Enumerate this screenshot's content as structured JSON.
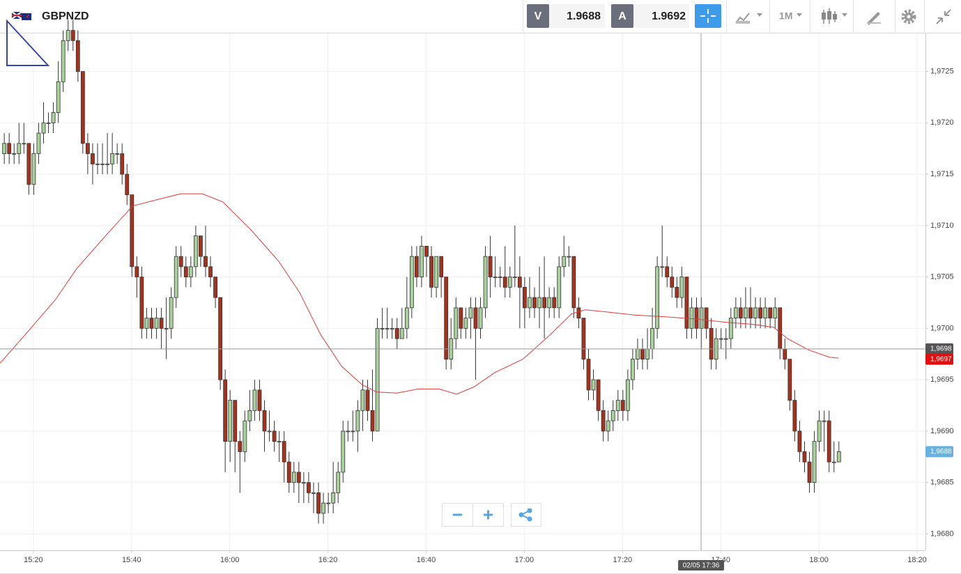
{
  "toolbar": {
    "symbol": "GBPNZD",
    "bid_label": "V",
    "bid": "1.9688",
    "ask_label": "A",
    "ask": "1.9692",
    "timeframe": "1M"
  },
  "chart_data": {
    "type": "candlestick",
    "up_color": "#a9d19c",
    "down_color": "#a5321d",
    "grid": true,
    "xlim": [
      913.2,
      1101.7
    ],
    "xticks": [
      {
        "value": 920,
        "label": "15:20"
      },
      {
        "value": 940,
        "label": "15:40"
      },
      {
        "value": 960,
        "label": "16:00"
      },
      {
        "value": 980,
        "label": "16:20"
      },
      {
        "value": 1000,
        "label": "16:40"
      },
      {
        "value": 1020,
        "label": "17:00"
      },
      {
        "value": 1040,
        "label": "17:20"
      },
      {
        "value": 1060,
        "label": "17:40"
      },
      {
        "value": 1080,
        "label": "18:00"
      },
      {
        "value": 1100,
        "label": "18:20"
      }
    ],
    "ylim": [
      1.96784,
      1.97287
    ],
    "yticks": [
      {
        "value": 1.968,
        "label": "1,9680"
      },
      {
        "value": 1.9685,
        "label": "1,9685"
      },
      {
        "value": 1.969,
        "label": "1,9690"
      },
      {
        "value": 1.9695,
        "label": "1,9695"
      },
      {
        "value": 1.97,
        "label": "1,9700"
      },
      {
        "value": 1.9705,
        "label": "1,9705"
      },
      {
        "value": 1.971,
        "label": "1,9710"
      },
      {
        "value": 1.9715,
        "label": "1,9715"
      },
      {
        "value": 1.972,
        "label": "1,9720"
      },
      {
        "value": 1.9725,
        "label": "1,9725"
      }
    ],
    "x": [
      914,
      915,
      916,
      917,
      918,
      919,
      920,
      921,
      922,
      923,
      924,
      925,
      926,
      927,
      928,
      929,
      930,
      931,
      932,
      933,
      934,
      935,
      936,
      937,
      938,
      939,
      940,
      941,
      942,
      943,
      944,
      945,
      946,
      947,
      948,
      949,
      950,
      951,
      952,
      953,
      954,
      955,
      956,
      957,
      958,
      959,
      960,
      961,
      962,
      963,
      964,
      965,
      966,
      967,
      968,
      969,
      970,
      971,
      972,
      973,
      974,
      975,
      976,
      977,
      978,
      979,
      980,
      981,
      982,
      983,
      984,
      985,
      986,
      987,
      988,
      989,
      990,
      991,
      992,
      993,
      994,
      995,
      996,
      997,
      998,
      999,
      1000,
      1001,
      1002,
      1003,
      1004,
      1005,
      1006,
      1007,
      1008,
      1009,
      1010,
      1011,
      1012,
      1013,
      1014,
      1015,
      1016,
      1017,
      1018,
      1019,
      1020,
      1021,
      1022,
      1023,
      1024,
      1025,
      1026,
      1027,
      1028,
      1029,
      1030,
      1031,
      1032,
      1033,
      1034,
      1035,
      1036,
      1037,
      1038,
      1039,
      1040,
      1041,
      1042,
      1043,
      1044,
      1045,
      1046,
      1047,
      1048,
      1049,
      1050,
      1051,
      1052,
      1053,
      1054,
      1055,
      1056,
      1057,
      1058,
      1059,
      1060,
      1061,
      1062,
      1063,
      1064,
      1065,
      1066,
      1067,
      1068,
      1069,
      1070,
      1071,
      1072,
      1073,
      1074,
      1075,
      1076,
      1077,
      1078,
      1079,
      1080,
      1081,
      1082,
      1083,
      1084
    ],
    "open": [
      1.9717,
      1.9718,
      1.9717,
      1.9717,
      1.9718,
      1.9718,
      1.9714,
      1.9717,
      1.9719,
      1.972,
      1.972,
      1.9721,
      1.9724,
      1.9728,
      1.9729,
      1.9728,
      1.9725,
      1.9718,
      1.9717,
      1.9716,
      1.9716,
      1.9716,
      1.9716,
      1.9717,
      1.9717,
      1.9715,
      1.9713,
      1.9706,
      1.9705,
      1.97,
      1.9701,
      1.97,
      1.9701,
      1.97,
      1.97,
      1.9703,
      1.9707,
      1.9706,
      1.9705,
      1.9706,
      1.9709,
      1.9707,
      1.9706,
      1.9705,
      1.9703,
      1.9695,
      1.9689,
      1.9693,
      1.9689,
      1.9688,
      1.9691,
      1.9692,
      1.9694,
      1.9692,
      1.969,
      1.969,
      1.9689,
      1.9689,
      1.9687,
      1.9685,
      1.9686,
      1.9685,
      1.9685,
      1.9684,
      1.9684,
      1.9682,
      1.9683,
      1.9683,
      1.9684,
      1.9686,
      1.969,
      1.969,
      1.969,
      1.9692,
      1.9694,
      1.9692,
      1.969,
      1.97,
      1.97,
      1.97,
      1.97,
      1.9699,
      1.97,
      1.9702,
      1.9707,
      1.9705,
      1.9708,
      1.9707,
      1.9704,
      1.9707,
      1.9705,
      1.9697,
      1.9699,
      1.9702,
      1.97,
      1.9701,
      1.9702,
      1.97,
      1.9702,
      1.9707,
      1.9705,
      1.9705,
      1.9705,
      1.9704,
      1.9705,
      1.9705,
      1.9704,
      1.9702,
      1.9703,
      1.9702,
      1.9703,
      1.9702,
      1.9703,
      1.9702,
      1.9706,
      1.9707,
      1.9707,
      1.9702,
      1.9701,
      1.9697,
      1.9694,
      1.9695,
      1.9692,
      1.969,
      1.9691,
      1.9692,
      1.9693,
      1.9692,
      1.9695,
      1.9697,
      1.9698,
      1.9697,
      1.9698,
      1.97,
      1.9706,
      1.9706,
      1.9705,
      1.9704,
      1.9703,
      1.9705,
      1.97,
      1.9702,
      1.97,
      1.9702,
      1.97,
      1.9697,
      1.9699,
      1.9699,
      1.9699,
      1.9701,
      1.9702,
      1.9701,
      1.9702,
      1.9701,
      1.9702,
      1.9701,
      1.9702,
      1.9701,
      1.9702,
      1.9698,
      1.9697,
      1.9693,
      1.969,
      1.9688,
      1.9687,
      1.9685,
      1.9689,
      1.9691,
      1.9691,
      1.9687,
      1.9687
    ],
    "high": [
      1.9719,
      1.9719,
      1.9718,
      1.972,
      1.972,
      1.9718,
      1.9718,
      1.972,
      1.9722,
      1.9721,
      1.9722,
      1.9726,
      1.9729,
      1.973,
      1.973,
      1.9729,
      1.9725,
      1.9719,
      1.9718,
      1.9718,
      1.9718,
      1.9719,
      1.9719,
      1.9718,
      1.9718,
      1.9716,
      1.9713,
      1.9707,
      1.9706,
      1.9702,
      1.9702,
      1.9702,
      1.9702,
      1.9703,
      1.9704,
      1.9708,
      1.9708,
      1.9707,
      1.9707,
      1.971,
      1.9709,
      1.971,
      1.9707,
      1.9705,
      1.9703,
      1.9696,
      1.9694,
      1.9693,
      1.969,
      1.9692,
      1.9694,
      1.9695,
      1.9695,
      1.9693,
      1.9692,
      1.9691,
      1.969,
      1.969,
      1.9688,
      1.9687,
      1.9687,
      1.9686,
      1.9686,
      1.9685,
      1.9685,
      1.9684,
      1.9684,
      1.9687,
      1.9687,
      1.9691,
      1.9691,
      1.9692,
      1.9693,
      1.9695,
      1.9695,
      1.9696,
      1.9701,
      1.9702,
      1.9702,
      1.9701,
      1.9701,
      1.9702,
      1.9705,
      1.9708,
      1.9708,
      1.9709,
      1.9708,
      1.9708,
      1.9707,
      1.9707,
      1.9705,
      1.9701,
      1.9703,
      1.9702,
      1.9702,
      1.9703,
      1.9703,
      1.9703,
      1.9708,
      1.9709,
      1.9707,
      1.9706,
      1.9708,
      1.9706,
      1.971,
      1.9707,
      1.9705,
      1.9705,
      1.9704,
      1.9706,
      1.9707,
      1.9704,
      1.9704,
      1.9707,
      1.9709,
      1.9708,
      1.9707,
      1.9703,
      1.9701,
      1.9698,
      1.9696,
      1.9695,
      1.9693,
      1.9692,
      1.9693,
      1.9694,
      1.9694,
      1.9696,
      1.9698,
      1.9699,
      1.9699,
      1.97,
      1.9702,
      1.9707,
      1.971,
      1.9707,
      1.9706,
      1.9705,
      1.9706,
      1.9705,
      1.9703,
      1.9703,
      1.9703,
      1.9702,
      1.9701,
      1.97,
      1.97,
      1.97,
      1.9702,
      1.9703,
      1.9703,
      1.9704,
      1.9704,
      1.9703,
      1.9703,
      1.9703,
      1.9702,
      1.9703,
      1.9702,
      1.9699,
      1.9697,
      1.9694,
      1.9691,
      1.9689,
      1.9688,
      1.969,
      1.9692,
      1.9692,
      1.9692,
      1.9689,
      1.9689
    ],
    "low": [
      1.9716,
      1.9716,
      1.9716,
      1.9716,
      1.9717,
      1.9713,
      1.9713,
      1.9716,
      1.9718,
      1.9719,
      1.9719,
      1.972,
      1.9723,
      1.9727,
      1.9727,
      1.9724,
      1.9717,
      1.9715,
      1.9714,
      1.9715,
      1.9715,
      1.9715,
      1.9715,
      1.9716,
      1.9714,
      1.9712,
      1.9705,
      1.9703,
      1.9699,
      1.9699,
      1.9699,
      1.9699,
      1.9698,
      1.9697,
      1.9699,
      1.9702,
      1.9705,
      1.9704,
      1.9704,
      1.9705,
      1.9706,
      1.9705,
      1.9704,
      1.9702,
      1.9694,
      1.9686,
      1.9687,
      1.9686,
      1.9684,
      1.9687,
      1.969,
      1.9691,
      1.9691,
      1.9688,
      1.9689,
      1.9688,
      1.9687,
      1.9685,
      1.9684,
      1.9684,
      1.9683,
      1.9683,
      1.9683,
      1.9682,
      1.9681,
      1.9681,
      1.9682,
      1.9682,
      1.9683,
      1.9685,
      1.9689,
      1.9689,
      1.9688,
      1.969,
      1.9691,
      1.9689,
      1.969,
      1.9699,
      1.9699,
      1.9699,
      1.9698,
      1.9699,
      1.9699,
      1.9701,
      1.9704,
      1.9704,
      1.9705,
      1.9703,
      1.9703,
      1.9703,
      1.9696,
      1.9696,
      1.9698,
      1.9699,
      1.9699,
      1.9699,
      1.9695,
      1.9699,
      1.9701,
      1.9703,
      1.9704,
      1.9704,
      1.9703,
      1.9703,
      1.9704,
      1.97,
      1.97,
      1.9701,
      1.9701,
      1.97,
      1.9699,
      1.9701,
      1.9701,
      1.9701,
      1.9705,
      1.9706,
      1.9701,
      1.97,
      1.9696,
      1.9693,
      1.9693,
      1.9691,
      1.9689,
      1.9689,
      1.969,
      1.9691,
      1.9691,
      1.9691,
      1.9694,
      1.9696,
      1.9696,
      1.9696,
      1.9697,
      1.9699,
      1.9705,
      1.9704,
      1.9703,
      1.9702,
      1.9702,
      1.9699,
      1.9699,
      1.9699,
      1.9698,
      1.9699,
      1.9696,
      1.9696,
      1.9698,
      1.9697,
      1.9698,
      1.97,
      1.97,
      1.97,
      1.97,
      1.97,
      1.97,
      1.97,
      1.97,
      1.97,
      1.9697,
      1.9696,
      1.9692,
      1.9689,
      1.9687,
      1.9686,
      1.9684,
      1.9684,
      1.9688,
      1.9688,
      1.9686,
      1.9686,
      1.9687
    ],
    "close": [
      1.9718,
      1.9717,
      1.9717,
      1.9718,
      1.9718,
      1.9714,
      1.9717,
      1.9719,
      1.972,
      1.972,
      1.9721,
      1.9724,
      1.9728,
      1.9729,
      1.9728,
      1.9725,
      1.9718,
      1.9717,
      1.9716,
      1.9716,
      1.9716,
      1.9716,
      1.9717,
      1.9717,
      1.9715,
      1.9713,
      1.9706,
      1.9705,
      1.97,
      1.9701,
      1.97,
      1.9701,
      1.97,
      1.97,
      1.9703,
      1.9707,
      1.9706,
      1.9705,
      1.9706,
      1.9709,
      1.9707,
      1.9706,
      1.9705,
      1.9703,
      1.9695,
      1.9689,
      1.9693,
      1.9689,
      1.9688,
      1.9691,
      1.9692,
      1.9694,
      1.9692,
      1.969,
      1.969,
      1.9689,
      1.9689,
      1.9687,
      1.9685,
      1.9686,
      1.9685,
      1.9685,
      1.9684,
      1.9684,
      1.9682,
      1.9683,
      1.9683,
      1.9684,
      1.9686,
      1.969,
      1.969,
      1.969,
      1.9692,
      1.9694,
      1.9692,
      1.969,
      1.97,
      1.97,
      1.97,
      1.97,
      1.9699,
      1.97,
      1.9702,
      1.9707,
      1.9705,
      1.9708,
      1.9707,
      1.9704,
      1.9707,
      1.9705,
      1.9697,
      1.9699,
      1.9702,
      1.97,
      1.9701,
      1.9702,
      1.97,
      1.9702,
      1.9707,
      1.9705,
      1.9705,
      1.9705,
      1.9704,
      1.9705,
      1.9705,
      1.9704,
      1.9702,
      1.9703,
      1.9702,
      1.9703,
      1.9702,
      1.9703,
      1.9702,
      1.9706,
      1.9707,
      1.9707,
      1.9702,
      1.9701,
      1.9697,
      1.9694,
      1.9695,
      1.9692,
      1.969,
      1.9691,
      1.9692,
      1.9693,
      1.9692,
      1.9695,
      1.9697,
      1.9698,
      1.9697,
      1.9698,
      1.97,
      1.9706,
      1.9706,
      1.9705,
      1.9704,
      1.9703,
      1.9705,
      1.97,
      1.9702,
      1.97,
      1.9702,
      1.97,
      1.9697,
      1.9699,
      1.9699,
      1.9699,
      1.9701,
      1.9702,
      1.9701,
      1.9702,
      1.9701,
      1.9702,
      1.9701,
      1.9702,
      1.9701,
      1.9702,
      1.9698,
      1.9697,
      1.9693,
      1.969,
      1.9688,
      1.9687,
      1.9685,
      1.9689,
      1.9691,
      1.9691,
      1.9687,
      1.9687,
      1.9688
    ],
    "overlay": {
      "color": "#e03a3a",
      "x": [
        913.2,
        918.9,
        924.5,
        928.8,
        934.5,
        940.2,
        945.8,
        950.1,
        954.4,
        958.6,
        964.3,
        970.0,
        974.2,
        978.5,
        982.8,
        987.0,
        989.9,
        994.1,
        998.4,
        1002.6,
        1006.2,
        1009.7,
        1014.0,
        1019.7,
        1025.3,
        1029.6,
        1032.4,
        1036.7,
        1042.4,
        1049.5,
        1055.2,
        1060.8,
        1066.5,
        1070.8,
        1073.6,
        1077.9,
        1082.1,
        1084.0
      ],
      "values": [
        1.96966,
        1.96997,
        1.97028,
        1.97058,
        1.97089,
        1.97119,
        1.97126,
        1.97131,
        1.97131,
        1.97123,
        1.97096,
        1.97065,
        1.97035,
        1.96994,
        1.96963,
        1.96945,
        1.96938,
        1.96937,
        1.96941,
        1.96941,
        1.96936,
        1.96943,
        1.96957,
        1.9697,
        1.96994,
        1.97014,
        1.97018,
        1.97016,
        1.97013,
        1.97011,
        1.97009,
        1.97006,
        1.97004,
        1.97001,
        1.9699,
        1.96979,
        1.96972,
        1.96971
      ]
    },
    "crosshair": {
      "x": 1056,
      "x_label": "02/05 17:36",
      "y": 1.9698,
      "y_label": "1,9698"
    },
    "price_markers": [
      {
        "value": 1.9697,
        "label": "1,9697",
        "color": "#e01010"
      },
      {
        "value": 1.9688,
        "label": "1,9688",
        "color": "#66b3e3"
      }
    ]
  }
}
